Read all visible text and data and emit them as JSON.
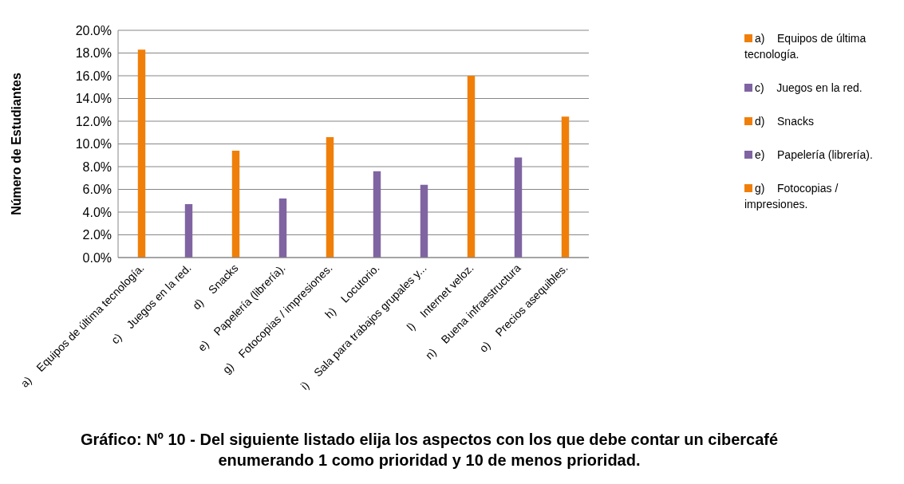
{
  "chart_data": {
    "type": "bar",
    "title": "Gráfico: Nº 10 -   Del siguiente listado elija los  aspectos con los que debe contar un cibercafé enumerando 1 como prioridad y 10 de menos prioridad.",
    "ylabel": "Número de Estudiantes",
    "categories": [
      "a)    Equipos de última tecnología.",
      "c)    Juegos en la red.",
      "d)    Snacks",
      "e)    Papelería (librería).",
      "g)    Fotocopias / impresiones.",
      "h)    Locutorio.",
      "i)    Sala para trabajos grupales y...",
      "l)    Internet veloz.",
      "n)    Buena infraestructura",
      "o)    Precios asequibles."
    ],
    "values": [
      18.3,
      4.7,
      9.4,
      5.2,
      10.6,
      7.6,
      6.4,
      16.0,
      8.8,
      12.4
    ],
    "colors": [
      "#f07f09",
      "#8064a2",
      "#f07f09",
      "#8064a2",
      "#f07f09",
      "#8064a2",
      "#8064a2",
      "#f07f09",
      "#8064a2",
      "#f07f09"
    ],
    "ylim": [
      0,
      20
    ],
    "yticks": [
      {
        "value": 0,
        "label": "0.0%"
      },
      {
        "value": 2,
        "label": "2.0%"
      },
      {
        "value": 4,
        "label": "4.0%"
      },
      {
        "value": 6,
        "label": "6.0%"
      },
      {
        "value": 8,
        "label": "8.0%"
      },
      {
        "value": 10,
        "label": "10.0%"
      },
      {
        "value": 12,
        "label": "12.0%"
      },
      {
        "value": 14,
        "label": "14.0%"
      },
      {
        "value": 16,
        "label": "16.0%"
      },
      {
        "value": 18,
        "label": "18.0%"
      },
      {
        "value": 20,
        "label": "20.0%"
      }
    ],
    "grid": "y"
  }
}
